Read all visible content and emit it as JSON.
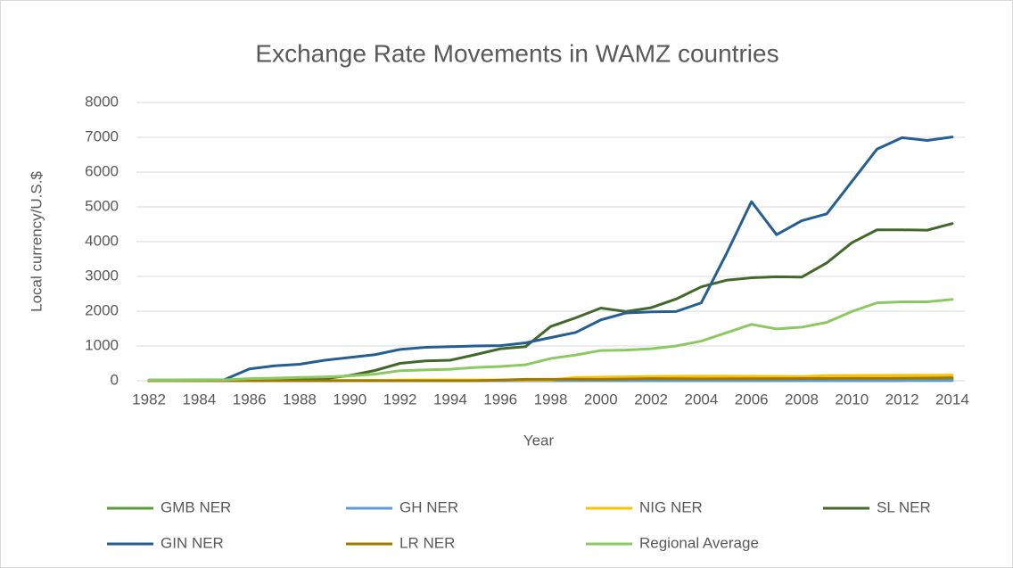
{
  "chart_data": {
    "type": "line",
    "title": "Exchange Rate Movements in WAMZ countries",
    "x_label": "Year",
    "y_label": "Local currency/U.S.$",
    "categories": [
      "1982",
      null,
      "1984",
      null,
      "1986",
      null,
      "1988",
      null,
      "1990",
      null,
      "1992",
      null,
      "1994",
      null,
      "1996",
      null,
      "1998",
      null,
      "2000",
      null,
      "2002",
      null,
      "2004",
      null,
      "2006",
      null,
      "2008",
      null,
      "2010",
      null,
      "2012",
      null,
      "2014"
    ],
    "ylim": [
      0,
      8000
    ],
    "yticks": [
      0,
      1000,
      2000,
      3000,
      4000,
      5000,
      6000,
      7000,
      8000
    ],
    "grid": true,
    "legend": "bottom",
    "series": [
      {
        "name": "GMB NER",
        "color": "#5b9b3a",
        "values": [
          2,
          2,
          3,
          4,
          6,
          7,
          7,
          7,
          8,
          9,
          9,
          9,
          9,
          9.5,
          10,
          10,
          11,
          11,
          12,
          15,
          20,
          27,
          30,
          28,
          28,
          24,
          22,
          27,
          28,
          29,
          31,
          33,
          40
        ]
      },
      {
        "name": "GH NER",
        "color": "#5b9bd5",
        "values": [
          0,
          0,
          0,
          0,
          0,
          0,
          0,
          0,
          0,
          0,
          0,
          0,
          0,
          0,
          0,
          0,
          0,
          0,
          0.5,
          0.7,
          0.8,
          0.9,
          0.9,
          0.9,
          0.9,
          0.9,
          1.1,
          1.4,
          1.4,
          1.5,
          1.6,
          1.9,
          2.9
        ]
      },
      {
        "name": "NIG NER",
        "color": "#ffc000",
        "values": [
          1,
          1,
          1,
          1,
          2,
          4,
          4,
          7,
          8,
          10,
          18,
          22,
          22,
          22,
          22,
          22,
          22,
          93,
          102,
          111,
          121,
          129,
          133,
          132,
          128,
          126,
          119,
          149,
          150,
          154,
          157,
          157,
          159
        ]
      },
      {
        "name": "SL NER",
        "color": "#43682b",
        "values": [
          1,
          2,
          3,
          6,
          16,
          30,
          40,
          65,
          150,
          295,
          500,
          570,
          590,
          750,
          920,
          980,
          1560,
          1810,
          2090,
          1990,
          2100,
          2350,
          2700,
          2890,
          2960,
          2990,
          2980,
          3390,
          3970,
          4340,
          4340,
          4330,
          4520
        ]
      },
      {
        "name": "GIN NER",
        "color": "#255e91",
        "values": [
          20,
          20,
          25,
          30,
          340,
          430,
          475,
          590,
          670,
          750,
          900,
          960,
          980,
          1000,
          1010,
          1090,
          1240,
          1390,
          1750,
          1950,
          1980,
          1990,
          2240,
          3650,
          5150,
          4200,
          4600,
          4800,
          5730,
          6660,
          6990,
          6910,
          7010
        ]
      },
      {
        "name": "LR NER",
        "color": "#9e7a00",
        "values": [
          1,
          1,
          1,
          1,
          1,
          1,
          1,
          1,
          1,
          1,
          1,
          1,
          1,
          1,
          20,
          41,
          41,
          42,
          40,
          48,
          61,
          59,
          54,
          57,
          58,
          61,
          63,
          68,
          71,
          72,
          74,
          77,
          85
        ]
      },
      {
        "name": "Regional Average",
        "color": "#8dc963",
        "values": [
          20,
          20,
          22,
          25,
          60,
          75,
          95,
          110,
          140,
          190,
          290,
          310,
          330,
          380,
          410,
          460,
          640,
          740,
          870,
          880,
          920,
          1000,
          1140,
          1380,
          1620,
          1490,
          1540,
          1680,
          1990,
          2240,
          2270,
          2270,
          2340
        ]
      }
    ]
  }
}
